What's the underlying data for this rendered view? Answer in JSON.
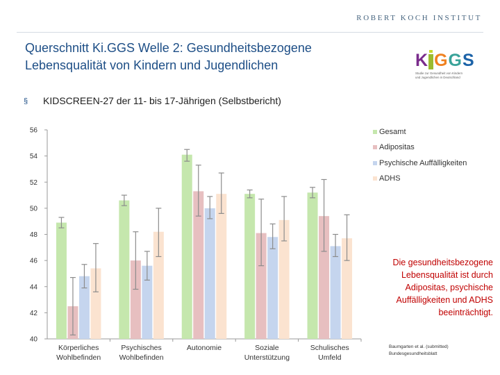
{
  "header": {
    "institute": "ROBERT KOCH INSTITUT",
    "title_line1": "Querschnitt Ki.GGS Welle 2: Gesundheitsbezogene",
    "title_line2": "Lebensqualität von Kindern und Jugendlichen",
    "bullet": "§",
    "subtitle": "KIDSCREEN-27 der 11- bis 17-Jährigen (Selbstbericht)"
  },
  "logo": {
    "wordmark": "KiGGS",
    "tagline_line1": "Studie zur Gesundheit von Kindern",
    "tagline_line2": "und Jugendlichen in Deutschland"
  },
  "chart_data": {
    "type": "bar",
    "categories": [
      [
        "Körperliches",
        "Wohlbefinden"
      ],
      [
        "Psychisches",
        "Wohlbefinden"
      ],
      [
        "Autonomie"
      ],
      [
        "Soziale",
        "Unterstützung"
      ],
      [
        "Schulisches",
        "Umfeld"
      ]
    ],
    "ylim": [
      40,
      56
    ],
    "yticks": [
      40,
      42,
      44,
      46,
      48,
      50,
      52,
      54,
      56
    ],
    "grid": false,
    "legend_position": "right",
    "series": [
      {
        "name": "Gesamt",
        "color": "#c5e7ad",
        "values": [
          48.9,
          50.6,
          54.1,
          51.1,
          51.2
        ],
        "err_low": [
          48.5,
          50.2,
          53.6,
          50.8,
          50.8
        ],
        "err_high": [
          49.3,
          51.0,
          54.5,
          51.4,
          51.6
        ]
      },
      {
        "name": "Adipositas",
        "color": "#e7bfc0",
        "values": [
          42.5,
          46.0,
          51.3,
          48.1,
          49.4
        ],
        "err_low": [
          40.3,
          43.8,
          49.4,
          45.6,
          46.7
        ],
        "err_high": [
          44.7,
          48.2,
          53.3,
          50.7,
          52.2
        ]
      },
      {
        "name": "Psychische Auffälligkeiten",
        "color": "#c5d5ee",
        "values": [
          44.8,
          45.6,
          50.0,
          47.8,
          47.1
        ],
        "err_low": [
          43.9,
          44.5,
          49.2,
          46.9,
          46.3
        ],
        "err_high": [
          45.7,
          46.7,
          50.9,
          48.8,
          48.0
        ]
      },
      {
        "name": "ADHS",
        "color": "#fbe3d0",
        "values": [
          45.4,
          48.2,
          51.1,
          49.1,
          47.7
        ],
        "err_low": [
          43.6,
          46.3,
          49.6,
          47.5,
          46.0
        ],
        "err_high": [
          47.3,
          50.0,
          52.7,
          50.9,
          49.5
        ]
      }
    ]
  },
  "note": "Die gesundheitsbezogene Lebensqualität ist durch Adipositas, psychische Auffälligkeiten und ADHS beeinträchtigt.",
  "citation": {
    "line1": "Baumgarten et al. (submitted)",
    "line2": "Bundesgesundheitsblatt"
  }
}
